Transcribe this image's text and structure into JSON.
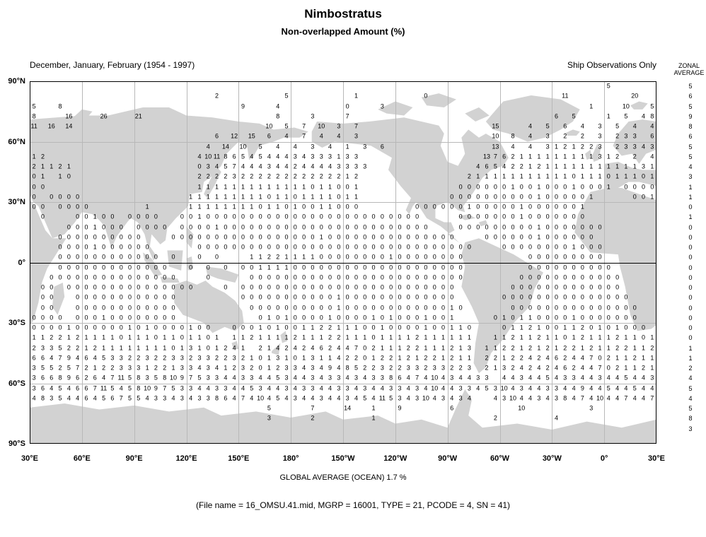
{
  "colors": {
    "land": "#d2d2d2",
    "grid_line": "#b8b8b8",
    "ink": "#000000"
  },
  "chart_data": {
    "type": "heatmap",
    "title": "Nimbostratus",
    "subtitle": "Non-overlapped Amount (%)",
    "season": "December, January, February (1954 - 1997)",
    "source": "Ship Observations Only",
    "units": "%",
    "global_average_label": "GLOBAL AVERAGE (OCEAN)   1.7 %",
    "global_average_ocean_pct": 1.7,
    "file_note": "(File name = 16_OMSU.41.mid, MGRP = 16001, TYPE = 21, PCODE = 4, SN = 41)",
    "lat_axis": [
      "90°N",
      "60°N",
      "30°N",
      "0°",
      "30°S",
      "60°S",
      "90°S"
    ],
    "lon_axis": [
      "30°E",
      "60°E",
      "90°E",
      "120°E",
      "150°E",
      "180°",
      "150°W",
      "120°W",
      "90°W",
      "60°W",
      "30°W",
      "0°",
      "30°E"
    ],
    "cell_size_deg": 5,
    "grid_note": "36 latitude rows (90N to 90S) x 72 longitude columns starting at 30E going east; '.' = land / no ship observation",
    "zonal_average": {
      "header": [
        "ZONAL",
        "AVERAGE"
      ],
      "values": [
        "5",
        "6",
        "5",
        "9",
        "8",
        "6",
        "5",
        "5",
        "4",
        "3",
        "1",
        "1",
        "0",
        "1",
        "0",
        "0",
        "0",
        "0",
        "0",
        "0",
        "0",
        "0",
        "0",
        "0",
        "0",
        "0",
        "1",
        "1",
        "2",
        "4",
        "5",
        "4",
        "5",
        "8",
        "3",
        ""
      ]
    },
    "grid_rows": [
      ". . . . . . . . . . . . . . . . . . . . . . . . . . . . . . . . . . . . . . . . . . . . . . . . . . . . . . . . . . . . . . . . . . 5 . . . . .",
      ". . . . . . . . . . . . . . . . . . . . . 2 . . . . . . . 5 . . . . . . . 1 . . . . . . . 0 . . . . . . . . . . . . . . . 11 . . . . . . . 20 . .",
      "5 . . 8 . . . . . . . . . . . . . . . . . . . . 9 . . . 4 . . . . . . . 0 . . . 3 . . . . . . . . . . . . . . . . . . . . . . . 1 . . . 10 . . 5",
      "8 . . . 16 . . . 26 . . . 21 . . . . . . . . . . . . . . . 8 . . . 3 . . . 7 . . . . . . . . . . . . . . . . . . . . . . . 6 . 5 . . . 1 . 5 . 4 8",
      "11 . 16 . 14 . . . . . . . . . . . . . . . . . . . . . . 10 . 5 . 7 . 10 . 3 . 7 . . . . . . . . . . . . . . . 15 . . . 4 . 5 . 6 . 4 . 3 . 5 . 4 . 4",
      ". . . . . . . . . . . . . . . . . . . . . 6 . 12 . 15 . 6 . 4 . 7 . 4 . 4 . 3 . . . . . . . . . . . . . . . 10 . 8 . 4 . 3 . 2 . 2 . 3 . 2 3 3 . 6",
      ". . . . . . . . . . . . . . . . . . . . 4 . 14 . 10 . 5 . 4 . 4 . 3 . 4 . 1 . 3 . 6 . . . . . . . . . . . . 13 . 4 . 4 . 3 1 2 1 2 2 3 . 2 3 3 4 3",
      "1 2 . . . . . . . . . . . . . . . . . 4 10 11 8 6 5 4 5 4 4 4 3 4 3 3 3 1 3 3 . . . . . . . . . . . . . . 13 7 6 2 1 1 1 1 1 1 1 1 1 3 1 2 . 2 . 4",
      "2 1 1 2 1 . . . . . . . . . . . . . . 0 3 4 5 7 4 4 4 3 4 4 2 4 4 4 4 3 3 3 3 . . . . . . . . . . . . 4 6 5 4 2 2 1 2 1 1 1 1 1 1 1 1 1 1 1 3 1",
      "0 1 . 1 0 . . . . . . . . . . . . . . 2 2 2 2 3 2 2 2 2 2 2 2 2 2 2 2 2 1 2 . . . . . . . . . . . . 2 1 1 1 1 1 1 1 1 1 1 1 0 1 1 1 0 1 1 1 0 1",
      "0 0 . . . . . . . . . . . . . . . . . 1 1 1 1 1 1 1 1 1 1 1 1 1 0 1 1 0 0 1 . . . . . . . . . . . 0 0 0 0 0 0 1 0 0 1 0 0 0 1 0 0 0 1 . 0 0 0 0",
      "0 . 0 0 0 0 . . . . . . . . . . . . 1 1 1 1 1 1 1 1 1 0 1 1 0 1 1 1 1 0 1 1 . . . . . . . . . . 0 0 0 0 0 0 0 0 0 0 1 0 0 0 0 0 1 . . . . 0 0 1",
      "0 0 . 0 0 0 0 . . . . . . 1 . . . . 1 1 1 1 1 1 1 1 0 1 1 0 1 0 0 1 1 0 0 0 . . . . . . 0 0 0 0 0 0 1 0 0 0 0 0 1 0 0 0 0 0 0 1 . . . . . . . .",
      ". 0 . . . 0 0 1 0 0 . 0 0 0 0 . . 0 0 1 0 0 0 0 0 0 0 0 0 0 0 0 0 0 0 0 0 0 0 0 0 0 0 0 0 . . . . 0 0 0 0 0 0 0 1 0 0 0 0 0 0 0 . . . . . . . .",
      ". . . . 0 0 0 1 0 0 0 . 0 0 0 0 . 0 0 0 0 1 0 0 0 0 0 0 0 0 0 0 0 0 0 0 0 0 0 0 0 0 0 0 0 0 . . . 0 0 0 0 0 0 0 0 0 1 0 0 0 0 0 0 0 . . . . . .",
      ". . . 0 0 0 0 0 0 0 0 0 0 . . . 0 0 0 0 0 0 0 0 0 0 0 0 0 0 0 0 0 1 0 0 0 0 0 0 0 0 0 0 0 0 0 0 0 . . . 0 0 0 0 0 0 1 0 0 0 0 0 0 . . . . . . .",
      ". . . 0 0 0 0 1 0 0 0 0 0 0 . . . . . 0 0 0 0 0 0 0 0 0 0 0 0 0 0 0 0 0 0 0 0 0 0 0 0 0 0 0 0 0 0 0 0 . . . 0 0 0 0 0 0 0 0 1 0 0 0 . . . . . .",
      ". . . 0 0 0 0 0 0 0 0 0 0 0 0 . 0 . . 0 . 0 . . . 1 1 2 2 1 1 1 1 0 0 0 0 0 0 0 0 1 0 0 0 0 0 0 0 0 . . . . . . . 0 0 0 0 0 0 0 0 0 . . . . . .",
      ". . . 0 0 0 0 0 0 0 0 0 0 0 0 0 . . 0 . 0 . 0 . 0 0 1 1 1 1 0 0 0 0 0 0 0 0 0 0 0 0 0 0 0 0 0 0 0 0 . . . . . . . 0 0 0 0 0 0 0 0 0 0 . . . . .",
      ". . 0 0 0 0 0 0 0 0 0 0 0 0 0 0 0 . . . 0 . . . . 0 0 0 0 0 0 0 0 0 0 0 0 0 0 0 0 0 0 0 0 0 0 0 0 0 . . . . . . 0 0 0 0 0 0 0 0 0 0 0 0 . . . .",
      ". 0 0 . 0 0 0 0 0 0 0 0 0 0 0 0 0 0 0 . . . 0 . 0 0 0 0 0 0 0 0 0 0 0 0 0 0 0 0 0 0 0 0 0 0 0 0 0 . . . . . . 0 0 0 0 0 0 0 0 0 0 0 0 0 . . . .",
      ". 0 0 . . 0 0 0 0 0 0 0 0 0 0 0 0 . . . . . . . 0 0 0 0 0 0 0 0 0 0 0 1 0 0 0 0 0 0 0 0 0 0 0 0 0 . . . . . 0 0 0 0 0 0 0 0 0 0 0 0 0 0 0 . . .",
      ". 0 0 . . 0 0 0 0 0 0 0 0 0 0 0 0 . . . . . . . . 0 0 0 0 0 0 0 0 0 0 1 0 0 0 0 0 0 0 0 0 0 0 0 1 0 . . . . . 0 0 0 0 0 0 0 0 0 0 0 0 0 0 0 . . .",
      "0 0 0 0 . 0 0 0 1 0 0 0 0 0 0 0 0 . . . . . . . . . 0 1 0 1 0 0 0 0 1 0 0 0 0 1 0 1 0 0 0 1 0 0 1 . . . . 0 1 0 1 1 0 0 0 0 1 0 0 0 0 0 0 0 . .",
      "0 0 0 0 1 0 0 0 0 0 0 1 0 1 0 0 0 0 1 0 0 . . 0 0 0 1 0 1 0 0 1 1 2 2 1 1 1 0 0 1 0 0 0 0 1 0 0 1 1 0 . . . 0 1 1 2 1 0 0 1 1 2 0 1 0 1 0 0 0 .",
      "1 1 2 2 1 2 1 1 1 1 0 1 1 1 0 1 1 0 1 1 0 1 . 1 1 2 1 1 1 1 2 1 1 1 2 2 1 1 1 0 1 1 1 1 2 1 1 1 1 1 1 . . 1 1 2 1 1 2 1 1 0 1 2 1 1 1 2 1 1 0 1",
      "2 3 3 5 2 2 1 2 1 1 1 1 1 1 1 1 0 1 3 1 0 1 2 4 1 . 2 1 4 2 4 2 4 6 2 4 4 7 0 2 1 1 1 2 2 1 1 1 2 1 3 . 1 1 2 2 1 2 1 2 1 2 2 1 2 1 1 2 2 1 1 2",
      "6 6 4 7 9 4 6 4 5 3 3 2 2 3 2 2 3 3 2 3 3 2 2 3 2 1 0 1 3 1 0 1 3 1 1 4 2 2 0 1 2 2 1 2 1 2 2 1 2 1 1 . 2 2 1 2 2 4 2 4 6 2 4 4 7 0 2 1 1 2 1 1",
      "3 5 5 2 5 7 2 1 2 2 3 3 3 1 2 2 1 3 3 4 3 4 1 2 3 2 0 1 2 3 3 4 3 4 9 4 8 5 2 2 3 2 2 3 3 2 3 3 2 2 3 . 2 1 3 2 4 2 4 2 4 6 2 4 4 7 0 2 1 1 2 1",
      "3 6 6 8 9 6 2 6 4 7 11 5 8 3 5 8 10 9 7 5 3 3 4 4 3 3 4 4 5 3 4 4 3 4 3 3 4 3 4 3 3 8 6 4 7 4 10 4 3 4 4 3 3 . 4 4 3 4 4 5 4 3 3 4 4 3 4 4 5 4 4 3",
      "3 6 4 5 4 6 6 7 11 5 4 5 8 10 9 7 5 3 3 4 4 3 3 4 4 5 3 4 4 3 4 3 3 4 4 3 3 4 3 4 4 3 3 4 3 4 10 4 4 3 3 4 5 3 10 4 3 4 4 3 3 4 4 9 4 4 5 4 4 5 4 4",
      "4 8 3 5 4 4 6 4 5 6 7 5 5 4 3 3 4 3 4 3 3 8 6 4 7 4 10 4 5 4 3 4 4 3 4 4 3 4 5 4 11 5 3 4 3 10 4 3 4 3 4 . . 4 3 10 4 4 3 4 3 8 4 7 4 10 4 4 7 4 4 7",
      ". . . . . . . . . . . . . . . . . . . . . . . . . . . 5 . . . . 7 . . . 14 . . 1 . . 9 . . . . . 6 . . . . . . . 10 . . . . . . . 3 . . . . . . .",
      ". . . . . . . . . . . . . . . . . . . . . . . . . . . 3 . . . . 2 . . . . . . 1 . . . . . . . . . . . . . 2 . . . . . . 4 . . . . . . . . . . .",
      ". . . . . . . . . . . . . . . . . . . . . . . . . . . . . . . . . . . . . . . . . . . . . . . . . . . . . . . . . . . . . . . . . . . . . . . .",
      ". . . . . . . . . . . . . . . . . . . . . . . . . . . . . . . . . . . . . . . . . . . . . . . . . . . . . . . . . . . . . . . . . . . . . . . ."
    ]
  }
}
